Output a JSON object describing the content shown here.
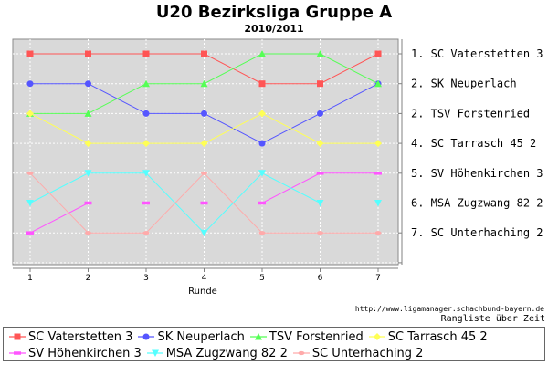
{
  "chart_data": {
    "type": "line",
    "title": "U20 Bezirksliga Gruppe A",
    "subtitle": "2010/2011",
    "xlabel": "Runde",
    "x": [
      1,
      2,
      3,
      4,
      5,
      6,
      7
    ],
    "y_range": [
      1,
      8
    ],
    "y_inverted": true,
    "grid": true,
    "right_labels": [
      "1. SC Vaterstetten 3",
      "2. SK Neuperlach",
      "2. TSV Forstenried",
      "4. SC Tarrasch 45 2",
      "5. SV Höhenkirchen 3",
      "6. MSA Zugzwang 82 2",
      "7. SC Unterhaching 2"
    ],
    "series": [
      {
        "name": "SC Vaterstetten 3",
        "color": "#ff5555",
        "marker": "square",
        "values": [
          1,
          1,
          1,
          1,
          2,
          2,
          1
        ]
      },
      {
        "name": "SK Neuperlach",
        "color": "#5555ff",
        "marker": "circle",
        "values": [
          2,
          2,
          3,
          3,
          4,
          3,
          2
        ]
      },
      {
        "name": "TSV Forstenried",
        "color": "#55ff55",
        "marker": "triangle-up",
        "values": [
          3,
          3,
          2,
          2,
          1,
          1,
          2
        ]
      },
      {
        "name": "SC Tarrasch 45 2",
        "color": "#ffff55",
        "marker": "diamond",
        "values": [
          3,
          4,
          4,
          4,
          3,
          4,
          4
        ]
      },
      {
        "name": "SV Höhenkirchen 3",
        "color": "#ff55ff",
        "marker": "rect-h",
        "values": [
          7,
          6,
          6,
          6,
          6,
          5,
          5
        ]
      },
      {
        "name": "MSA Zugzwang 82 2",
        "color": "#55ffff",
        "marker": "triangle-down",
        "values": [
          6,
          5,
          5,
          7,
          5,
          6,
          6
        ]
      },
      {
        "name": "SC Unterhaching 2",
        "color": "#ffaaaa",
        "marker": "ellipse",
        "values": [
          5,
          7,
          7,
          5,
          7,
          7,
          7
        ]
      }
    ]
  },
  "footer": {
    "url": "http://www.ligamanager.schachbund-bayern.de",
    "caption": "Rangliste über Zeit"
  }
}
